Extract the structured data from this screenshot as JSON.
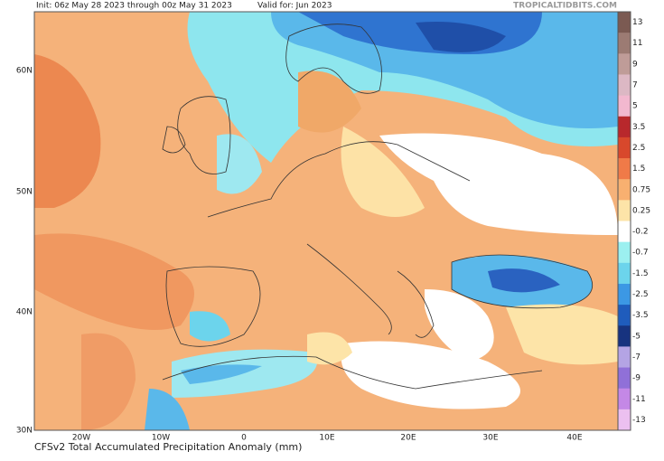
{
  "header": {
    "init": "Init: 06z May 28 2023 through 00z May 31 2023",
    "valid": "Valid for: Jun 2023",
    "site": "TROPICALTIDBITS.COM"
  },
  "footer": {
    "title": "CFSv2 Total Accumulated Precipitation Anomaly (mm)"
  },
  "colorbar": {
    "items": [
      {
        "label": "13",
        "color": "#7b5a52"
      },
      {
        "label": "11",
        "color": "#9c7b73"
      },
      {
        "label": "9",
        "color": "#bf9c98"
      },
      {
        "label": "7",
        "color": "#dcb8c4"
      },
      {
        "label": "5",
        "color": "#f2b8cf"
      },
      {
        "label": "3.5",
        "color": "#b8282c"
      },
      {
        "label": "2.5",
        "color": "#d8482c"
      },
      {
        "label": "1.5",
        "color": "#f07a48"
      },
      {
        "label": "0.75",
        "color": "#f8b070"
      },
      {
        "label": "0.25",
        "color": "#fde4a8"
      },
      {
        "label": "-0.2",
        "color": "#ffffff"
      },
      {
        "label": "-0.7",
        "color": "#9cf0f0"
      },
      {
        "label": "-1.5",
        "color": "#6cd4ec"
      },
      {
        "label": "-2.5",
        "color": "#3c98e4"
      },
      {
        "label": "-3.5",
        "color": "#1f5cbc"
      },
      {
        "label": "-5",
        "color": "#17337f"
      },
      {
        "label": "-7",
        "color": "#b4a4e4"
      },
      {
        "label": "-9",
        "color": "#9070d8"
      },
      {
        "label": "-11",
        "color": "#c488e6"
      },
      {
        "label": "-13",
        "color": "#ecc0f0"
      }
    ]
  },
  "lat_labels": [
    "60N",
    "50N",
    "40N",
    "30N"
  ],
  "lon_labels": [
    "20W",
    "10W",
    "0",
    "10E",
    "20E",
    "30E",
    "40E"
  ]
}
